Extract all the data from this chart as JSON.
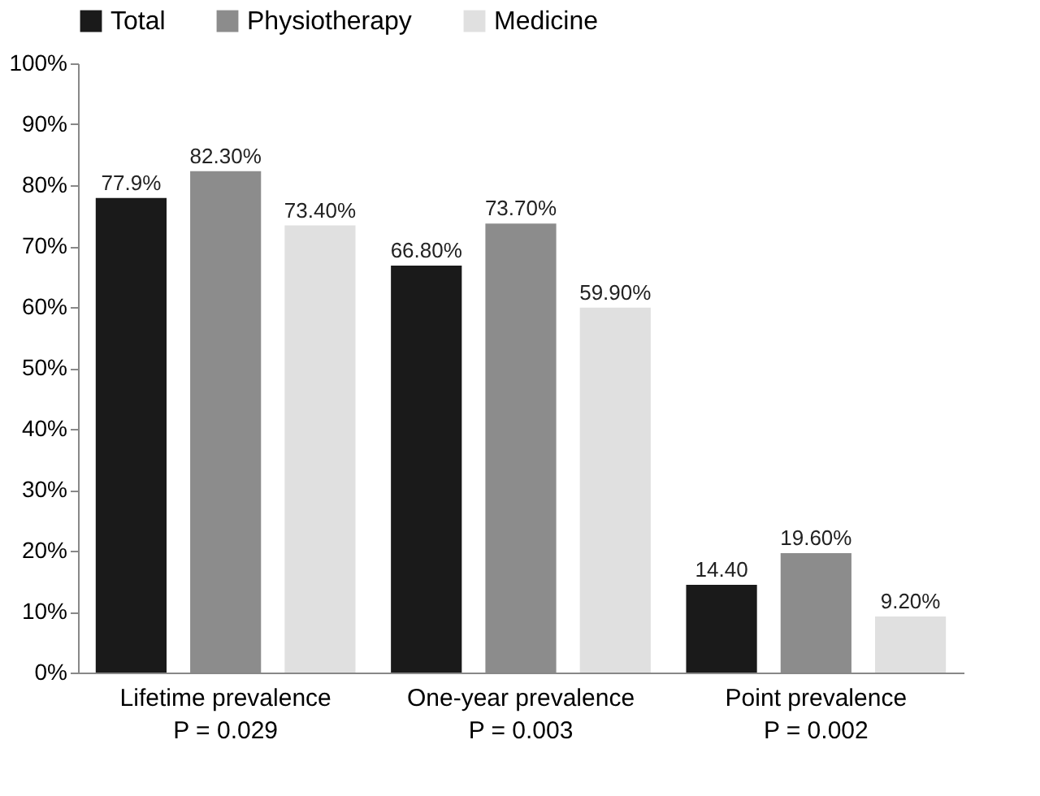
{
  "chart_data": {
    "type": "bar",
    "categories": [
      "Lifetime prevalence\nP = 0.029",
      "One-year prevalence\nP = 0.003",
      "Point prevalence\nP = 0.002"
    ],
    "series": [
      {
        "name": "Total",
        "color": "#1a1a1a",
        "values": [
          77.9,
          66.8,
          14.4
        ],
        "value_labels": [
          "77.9%",
          "66.80%",
          "14.40"
        ]
      },
      {
        "name": "Physiotherapy",
        "color": "#8c8c8c",
        "values": [
          82.3,
          73.7,
          19.6
        ],
        "value_labels": [
          "82.30%",
          "73.70%",
          "19.60%"
        ]
      },
      {
        "name": "Medicine",
        "color": "#e0e0e0",
        "values": [
          73.4,
          59.9,
          9.2
        ],
        "value_labels": [
          "73.40%",
          "59.90%",
          "9.20%"
        ]
      }
    ],
    "ylim": [
      0,
      100
    ],
    "yticks": [
      {
        "value": 0,
        "label": "0%"
      },
      {
        "value": 10,
        "label": "10%"
      },
      {
        "value": 20,
        "label": "20%"
      },
      {
        "value": 30,
        "label": "30%"
      },
      {
        "value": 40,
        "label": "40%"
      },
      {
        "value": 50,
        "label": "50%"
      },
      {
        "value": 60,
        "label": "60%"
      },
      {
        "value": 70,
        "label": "70%"
      },
      {
        "value": 80,
        "label": "80%"
      },
      {
        "value": 90,
        "label": "90%"
      },
      {
        "value": 100,
        "label": "100%"
      }
    ],
    "grid": false,
    "legend": "top"
  }
}
